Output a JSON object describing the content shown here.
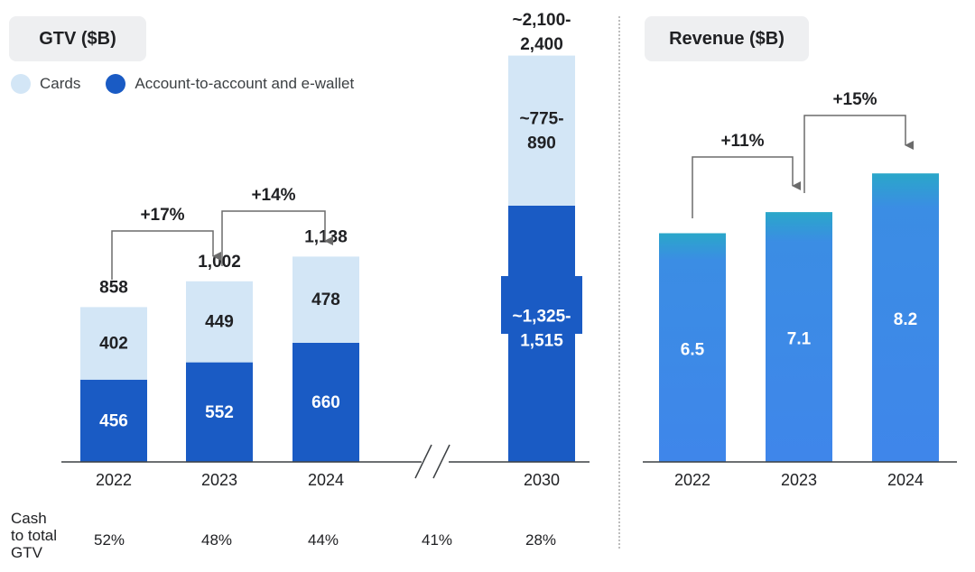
{
  "gtv_panel": {
    "title": "GTV ($B)",
    "legend": [
      {
        "label": "Cards",
        "color": "#d3e6f6"
      },
      {
        "label": "Account-to-account and e-wallet",
        "color": "#1a5bc4"
      }
    ]
  },
  "revenue_panel": {
    "title": "Revenue ($B)"
  },
  "footer": {
    "label_lines": [
      "Cash",
      "to total",
      "GTV"
    ],
    "values": [
      "52%",
      "48%",
      "44%",
      "41%",
      "28%"
    ]
  },
  "chart_data": [
    {
      "type": "bar",
      "title": "GTV ($B)",
      "stacked": true,
      "categories": [
        "2022",
        "2023",
        "2024",
        "2030"
      ],
      "series": [
        {
          "name": "Account-to-account and e-wallet",
          "values": [
            456,
            552,
            660,
            1420
          ],
          "labels": [
            "456",
            "552",
            "660",
            "~1,325-\n1,515"
          ],
          "color": "#1a5bc4"
        },
        {
          "name": "Cards",
          "values": [
            402,
            449,
            478,
            832
          ],
          "labels": [
            "402",
            "449",
            "478",
            "~775-\n890"
          ],
          "color": "#d3e6f6"
        }
      ],
      "totals": [
        "858",
        "1,002",
        "1,138",
        "~2,100-\n2,400"
      ],
      "growth_annotations": [
        {
          "from": "2022",
          "to": "2023",
          "label": "+17%"
        },
        {
          "from": "2023",
          "to": "2024",
          "label": "+14%"
        }
      ],
      "axis_break_between": [
        "2024",
        "2030"
      ]
    },
    {
      "type": "bar",
      "title": "Revenue ($B)",
      "categories": [
        "2022",
        "2023",
        "2024"
      ],
      "values": [
        6.5,
        7.1,
        8.2
      ],
      "labels": [
        "6.5",
        "7.1",
        "8.2"
      ],
      "color_gradient": [
        "#2aa7c9",
        "#3f86ea"
      ],
      "growth_annotations": [
        {
          "from": "2022",
          "to": "2023",
          "label": "+11%"
        },
        {
          "from": "2023",
          "to": "2024",
          "label": "+15%"
        }
      ]
    }
  ]
}
